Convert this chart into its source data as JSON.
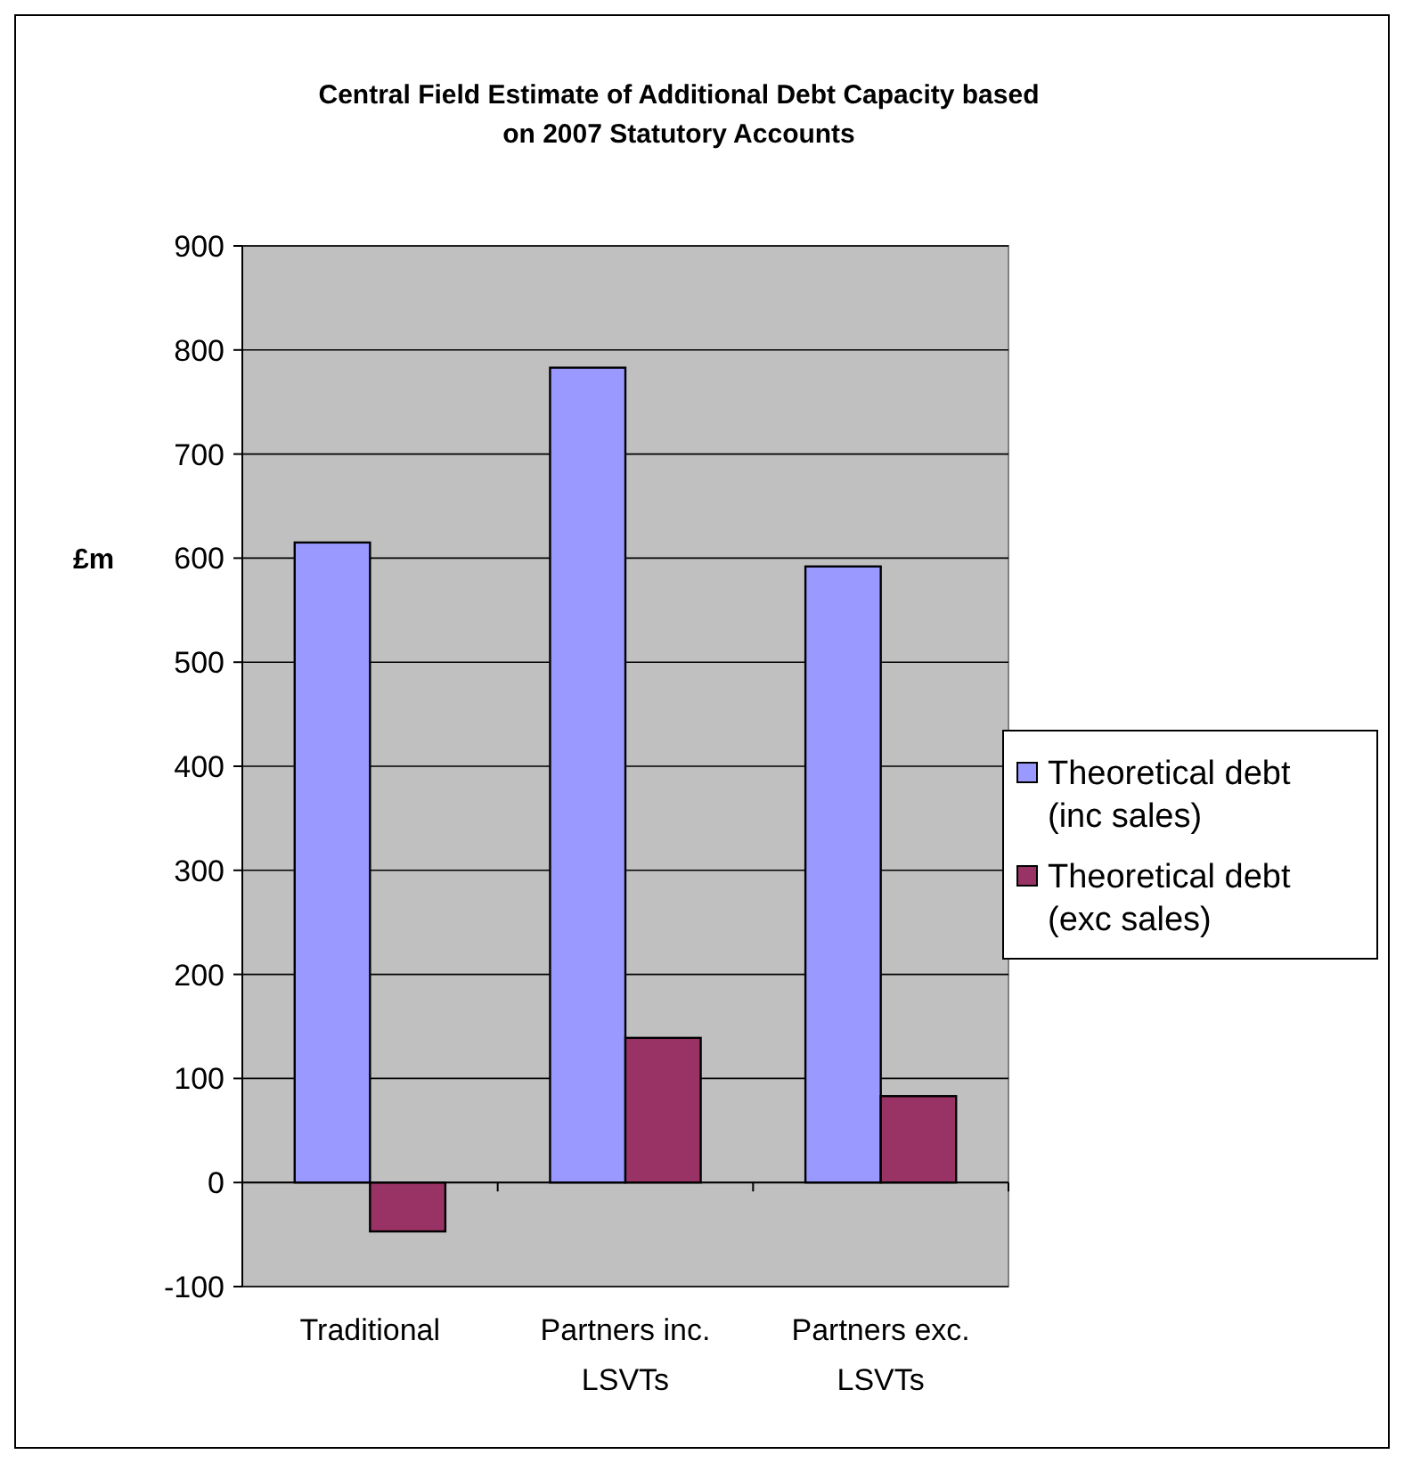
{
  "chart_data": {
    "type": "bar",
    "title": "Central Field Estimate of Additional Debt Capacity based on 2007 Statutory Accounts",
    "ylabel": "£m",
    "categories": [
      "Traditional",
      "Partners inc. LSVTs",
      "Partners exc. LSVTs"
    ],
    "series": [
      {
        "name": "Theoretical debt (inc sales)",
        "color": "#9999ff",
        "values": [
          615,
          783,
          592
        ]
      },
      {
        "name": "Theoretical debt (exc sales)",
        "color": "#993366",
        "values": [
          -47,
          139,
          83
        ]
      }
    ],
    "ylim": [
      -100,
      900
    ],
    "yticks": [
      -100,
      0,
      100,
      200,
      300,
      400,
      500,
      600,
      700,
      800,
      900
    ],
    "grid": "y",
    "legend": "right"
  }
}
